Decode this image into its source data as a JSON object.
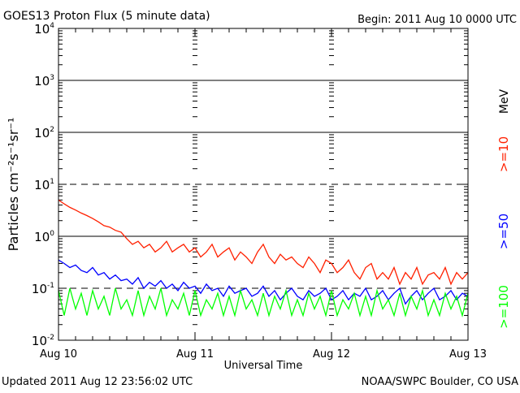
{
  "chart_data": {
    "type": "line",
    "title": "GOES13 Proton Flux (5 minute data)",
    "begin_label": "Begin: 2011 Aug 10 0000 UTC",
    "xlabel": "Universal Time",
    "ylabel": "Particles cm⁻²s⁻¹sr⁻¹",
    "yscale": "log",
    "ylim": [
      0.01,
      10000
    ],
    "y_ticks": [
      {
        "value": 10000,
        "base": "10",
        "exp": "4"
      },
      {
        "value": 1000,
        "base": "10",
        "exp": "3"
      },
      {
        "value": 100,
        "base": "10",
        "exp": "2"
      },
      {
        "value": 10,
        "base": "10",
        "exp": "1"
      },
      {
        "value": 1,
        "base": "10",
        "exp": "0"
      },
      {
        "value": 0.1,
        "base": "10",
        "exp": "-1"
      },
      {
        "value": 0.01,
        "base": "10",
        "exp": "-2"
      }
    ],
    "xlim_hours": [
      0,
      72
    ],
    "x_ticks": [
      {
        "hours": 0,
        "label": "Aug 10"
      },
      {
        "hours": 24,
        "label": "Aug 11"
      },
      {
        "hours": 48,
        "label": "Aug 12"
      },
      {
        "hours": 72,
        "label": "Aug 13"
      }
    ],
    "sample_step_hours": 1,
    "unit_label": "MeV",
    "series": [
      {
        "name": ">=10",
        "color": "#ff2000",
        "values": [
          5.0,
          4.2,
          3.6,
          3.2,
          2.8,
          2.5,
          2.2,
          1.9,
          1.6,
          1.5,
          1.3,
          1.2,
          0.9,
          0.7,
          0.8,
          0.6,
          0.7,
          0.5,
          0.6,
          0.8,
          0.5,
          0.6,
          0.7,
          0.5,
          0.6,
          0.4,
          0.5,
          0.7,
          0.4,
          0.5,
          0.6,
          0.35,
          0.5,
          0.4,
          0.3,
          0.5,
          0.7,
          0.4,
          0.3,
          0.45,
          0.35,
          0.4,
          0.3,
          0.25,
          0.4,
          0.3,
          0.2,
          0.35,
          0.3,
          0.2,
          0.25,
          0.35,
          0.2,
          0.15,
          0.25,
          0.3,
          0.15,
          0.2,
          0.15,
          0.25,
          0.12,
          0.2,
          0.15,
          0.25,
          0.12,
          0.18,
          0.2,
          0.15,
          0.25,
          0.12,
          0.2,
          0.15,
          0.2
        ]
      },
      {
        "name": ">=50",
        "color": "#0000ff",
        "values": [
          0.35,
          0.3,
          0.25,
          0.28,
          0.22,
          0.2,
          0.25,
          0.18,
          0.2,
          0.15,
          0.18,
          0.14,
          0.15,
          0.12,
          0.16,
          0.1,
          0.13,
          0.11,
          0.14,
          0.1,
          0.12,
          0.09,
          0.13,
          0.1,
          0.11,
          0.08,
          0.12,
          0.09,
          0.1,
          0.07,
          0.11,
          0.08,
          0.09,
          0.1,
          0.07,
          0.08,
          0.11,
          0.07,
          0.09,
          0.06,
          0.08,
          0.1,
          0.07,
          0.06,
          0.09,
          0.07,
          0.08,
          0.1,
          0.06,
          0.07,
          0.09,
          0.06,
          0.08,
          0.07,
          0.1,
          0.06,
          0.07,
          0.09,
          0.06,
          0.08,
          0.1,
          0.05,
          0.07,
          0.09,
          0.06,
          0.08,
          0.1,
          0.06,
          0.07,
          0.09,
          0.06,
          0.08,
          0.07
        ]
      },
      {
        "name": ">=100",
        "color": "#00ff00",
        "values": [
          0.09,
          0.03,
          0.1,
          0.04,
          0.08,
          0.03,
          0.09,
          0.04,
          0.07,
          0.03,
          0.1,
          0.04,
          0.06,
          0.03,
          0.09,
          0.03,
          0.07,
          0.04,
          0.1,
          0.03,
          0.06,
          0.04,
          0.08,
          0.03,
          0.09,
          0.03,
          0.06,
          0.04,
          0.08,
          0.03,
          0.07,
          0.03,
          0.09,
          0.04,
          0.06,
          0.03,
          0.08,
          0.03,
          0.07,
          0.04,
          0.09,
          0.03,
          0.06,
          0.03,
          0.08,
          0.04,
          0.07,
          0.03,
          0.09,
          0.03,
          0.06,
          0.04,
          0.08,
          0.03,
          0.07,
          0.03,
          0.09,
          0.04,
          0.06,
          0.03,
          0.08,
          0.03,
          0.07,
          0.04,
          0.09,
          0.03,
          0.06,
          0.03,
          0.08,
          0.04,
          0.07,
          0.03,
          0.08
        ]
      }
    ]
  },
  "footer": {
    "updated": "Updated 2011 Aug 12 23:56:02 UTC",
    "source": "NOAA/SWPC Boulder, CO USA"
  }
}
